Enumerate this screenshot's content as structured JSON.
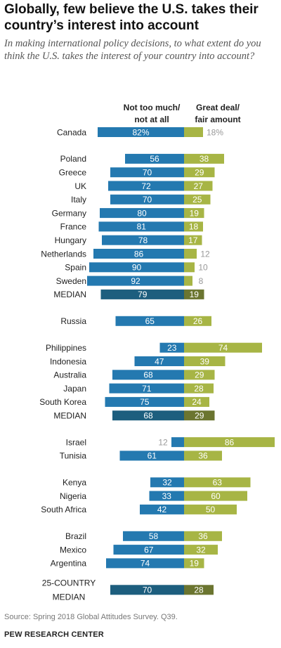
{
  "title": "Globally, few believe the U.S. takes their country’s interest into account",
  "subtitle": "In making international policy decisions, to what extent do you think the U.S. takes the interest of your country into account?",
  "source": "Source: Spring 2018 Global Attitudes Survey. Q39.",
  "brand": "PEW RESEARCH CENTER",
  "colors": {
    "negative": "#2479b0",
    "positive": "#a7b545",
    "negative_median": "#1d5e7e",
    "positive_median": "#6b7530",
    "outside_label": "#999999"
  },
  "chart_data": {
    "type": "bar",
    "orientation": "horizontal-diverging",
    "series": [
      {
        "name": "Not too much/ not at all",
        "key": "neg"
      },
      {
        "name": "Great deal/ fair amount",
        "key": "pos"
      }
    ],
    "column_headers": {
      "neg": [
        "Not too much/",
        "not at all"
      ],
      "pos": [
        "Great deal/",
        "fair amount"
      ]
    },
    "groups": [
      {
        "rows": [
          {
            "label": [
              "Canada"
            ],
            "neg": 82,
            "neg_label": "82%",
            "pos": 18,
            "pos_label": "18%"
          }
        ]
      },
      {
        "rows": [
          {
            "label": [
              "Poland"
            ],
            "neg": 56,
            "pos": 38
          },
          {
            "label": [
              "Greece"
            ],
            "neg": 70,
            "pos": 29
          },
          {
            "label": [
              "UK"
            ],
            "neg": 72,
            "pos": 27
          },
          {
            "label": [
              "Italy"
            ],
            "neg": 70,
            "pos": 25
          },
          {
            "label": [
              "Germany"
            ],
            "neg": 80,
            "pos": 19
          },
          {
            "label": [
              "France"
            ],
            "neg": 81,
            "pos": 18
          },
          {
            "label": [
              "Hungary"
            ],
            "neg": 78,
            "pos": 17
          },
          {
            "label": [
              "Netherlands"
            ],
            "neg": 86,
            "pos": 12
          },
          {
            "label": [
              "Spain"
            ],
            "neg": 90,
            "pos": 10
          },
          {
            "label": [
              "Sweden"
            ],
            "neg": 92,
            "pos": 8
          },
          {
            "label": [
              "MEDIAN"
            ],
            "neg": 79,
            "pos": 19,
            "median": true
          }
        ]
      },
      {
        "rows": [
          {
            "label": [
              "Russia"
            ],
            "neg": 65,
            "pos": 26
          }
        ]
      },
      {
        "rows": [
          {
            "label": [
              "Philippines"
            ],
            "neg": 23,
            "pos": 74
          },
          {
            "label": [
              "Indonesia"
            ],
            "neg": 47,
            "pos": 39
          },
          {
            "label": [
              "Australia"
            ],
            "neg": 68,
            "pos": 29
          },
          {
            "label": [
              "Japan"
            ],
            "neg": 71,
            "pos": 28
          },
          {
            "label": [
              "South Korea"
            ],
            "neg": 75,
            "pos": 24
          },
          {
            "label": [
              "MEDIAN"
            ],
            "neg": 68,
            "pos": 29,
            "median": true
          }
        ]
      },
      {
        "rows": [
          {
            "label": [
              "Israel"
            ],
            "neg": 12,
            "pos": 86
          },
          {
            "label": [
              "Tunisia"
            ],
            "neg": 61,
            "pos": 36
          }
        ]
      },
      {
        "rows": [
          {
            "label": [
              "Kenya"
            ],
            "neg": 32,
            "pos": 63
          },
          {
            "label": [
              "Nigeria"
            ],
            "neg": 33,
            "pos": 60
          },
          {
            "label": [
              "South Africa"
            ],
            "neg": 42,
            "pos": 50
          }
        ]
      },
      {
        "rows": [
          {
            "label": [
              "Brazil"
            ],
            "neg": 58,
            "pos": 36
          },
          {
            "label": [
              "Mexico"
            ],
            "neg": 67,
            "pos": 32
          },
          {
            "label": [
              "Argentina"
            ],
            "neg": 74,
            "pos": 19
          }
        ]
      },
      {
        "rows": [
          {
            "label": [
              "25-COUNTRY",
              "MEDIAN"
            ],
            "neg": 70,
            "pos": 28,
            "median": true
          }
        ]
      }
    ]
  }
}
